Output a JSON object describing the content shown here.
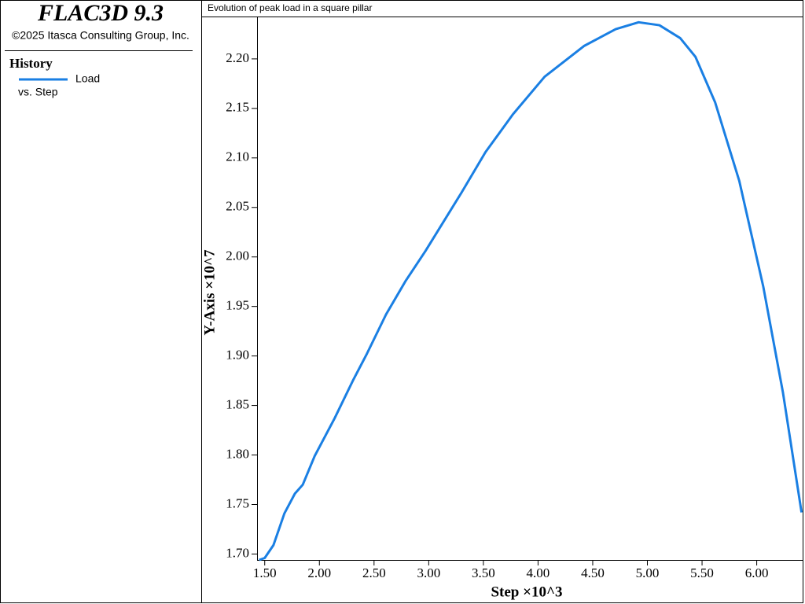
{
  "panel": {
    "product": "FLAC3D 9.3",
    "copyright": "©2025 Itasca Consulting Group, Inc.",
    "section": "History",
    "legend_suffix": "vs. Step"
  },
  "chart_data": {
    "type": "line",
    "title": "Evolution of peak load in a square pillar",
    "x_label": "Step ×10^3",
    "y_label": "Y-Axis ×10^7",
    "x": [
      1.449,
      1.5,
      1.58,
      1.68,
      1.776,
      1.848,
      1.957,
      2.139,
      2.306,
      2.429,
      2.61,
      2.79,
      2.97,
      3.3,
      3.52,
      3.77,
      4.06,
      4.42,
      4.71,
      4.92,
      5.11,
      5.3,
      5.44,
      5.62,
      5.84,
      6.06,
      6.24,
      6.41
    ],
    "series": [
      {
        "name": "Load",
        "color": "#1a7fe3",
        "values": [
          1.694,
          1.696,
          1.709,
          1.741,
          1.761,
          1.77,
          1.799,
          1.837,
          1.875,
          1.901,
          1.942,
          1.976,
          2.006,
          2.065,
          2.106,
          2.144,
          2.182,
          2.213,
          2.23,
          2.237,
          2.234,
          2.221,
          2.202,
          2.156,
          2.077,
          1.97,
          1.863,
          1.742
        ]
      }
    ],
    "xlim": [
      1.43,
      6.42
    ],
    "ylim": [
      1.694,
      2.242
    ],
    "xticks": [
      {
        "value": 1.5,
        "label": "1.50"
      },
      {
        "value": 2,
        "label": "2.00"
      },
      {
        "value": 2.5,
        "label": "2.50"
      },
      {
        "value": 3,
        "label": "3.00"
      },
      {
        "value": 3.5,
        "label": "3.50"
      },
      {
        "value": 4,
        "label": "4.00"
      },
      {
        "value": 4.5,
        "label": "4.50"
      },
      {
        "value": 5,
        "label": "5.00"
      },
      {
        "value": 5.5,
        "label": "5.50"
      },
      {
        "value": 6,
        "label": "6.00"
      }
    ],
    "yticks": [
      {
        "value": 1.7,
        "label": "1.70"
      },
      {
        "value": 1.75,
        "label": "1.75"
      },
      {
        "value": 1.8,
        "label": "1.80"
      },
      {
        "value": 1.85,
        "label": "1.85"
      },
      {
        "value": 1.9,
        "label": "1.90"
      },
      {
        "value": 1.95,
        "label": "1.95"
      },
      {
        "value": 2,
        "label": "2.00"
      },
      {
        "value": 2.05,
        "label": "2.05"
      },
      {
        "value": 2.1,
        "label": "2.10"
      },
      {
        "value": 2.15,
        "label": "2.15"
      },
      {
        "value": 2.2,
        "label": "2.20"
      }
    ],
    "grid": false
  }
}
